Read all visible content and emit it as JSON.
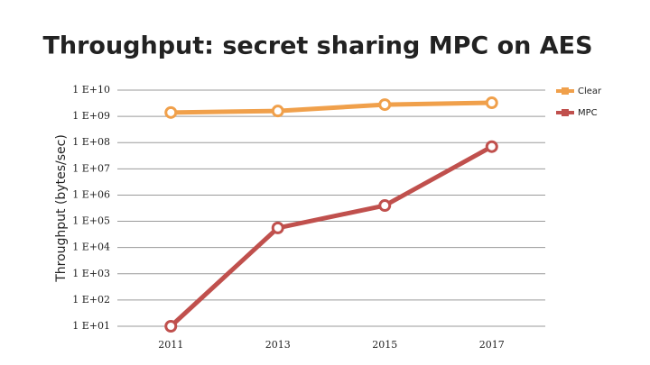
{
  "chart_data": {
    "type": "line",
    "title": "Throughput: secret sharing MPC on AES",
    "y_label": "Throughput (bytes/sec)",
    "categories": [
      "2011",
      "2013",
      "2015",
      "2017"
    ],
    "series": [
      {
        "name": "Clear",
        "color": "#f0a04b",
        "values": [
          1400000000,
          1600000000,
          2800000000,
          3300000000
        ]
      },
      {
        "name": "MPC",
        "color": "#c0504d",
        "values": [
          10,
          56000,
          400000,
          70000000
        ]
      }
    ],
    "log_scale": true,
    "ylim": [
      10,
      10000000000
    ],
    "yticks": [
      {
        "value": 10,
        "label": "1 E+01"
      },
      {
        "value": 100,
        "label": "1 E+02"
      },
      {
        "value": 1000,
        "label": "1 E+03"
      },
      {
        "value": 10000,
        "label": "1 E+04"
      },
      {
        "value": 100000,
        "label": "1 E+05"
      },
      {
        "value": 1000000,
        "label": "1 E+06"
      },
      {
        "value": 10000000,
        "label": "1 E+07"
      },
      {
        "value": 100000000,
        "label": "1 E+08"
      },
      {
        "value": 1000000000,
        "label": "1 E+09"
      },
      {
        "value": 10000000000,
        "label": "1 E+10"
      }
    ],
    "grid": true,
    "legend": "top-right"
  }
}
